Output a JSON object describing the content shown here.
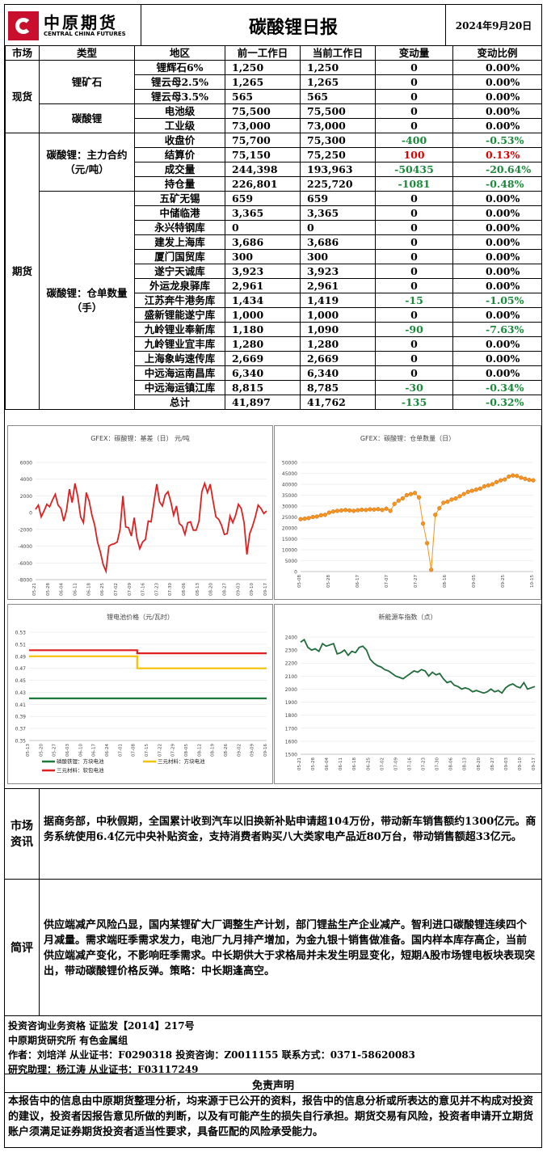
{
  "header": {
    "logo_cn": "中原期货",
    "logo_en": "CENTRAL CHINA FUTURES",
    "title": "碳酸锂日报",
    "date": "2024年9月20日"
  },
  "table": {
    "headers": [
      "市场",
      "类型",
      "地区",
      "前一工作日",
      "当前工作日",
      "变动量",
      "变动比例"
    ],
    "spot_label": "现货",
    "futures_label": "期货",
    "groups": {
      "ore": "锂矿石",
      "carbonate": "碳酸锂",
      "main": "碳酸锂：主力合约（元/吨）",
      "warehouse": "碳酸锂：仓单数量（手）"
    },
    "rows": [
      {
        "region": "锂辉石6%",
        "prev": "1,250",
        "cur": "1,250",
        "chg": "0",
        "pct": "0.00%"
      },
      {
        "region": "锂云母2.5%",
        "prev": "1,265",
        "cur": "1,265",
        "chg": "0",
        "pct": "0.00%"
      },
      {
        "region": "锂云母3.5%",
        "prev": "565",
        "cur": "565",
        "chg": "0",
        "pct": "0.00%"
      },
      {
        "region": "电池级",
        "prev": "75,500",
        "cur": "75,500",
        "chg": "0",
        "pct": "0.00%"
      },
      {
        "region": "工业级",
        "prev": "73,000",
        "cur": "73,000",
        "chg": "0",
        "pct": "0.00%"
      },
      {
        "region": "收盘价",
        "prev": "75,700",
        "cur": "75,300",
        "chg": "-400",
        "pct": "-0.53%"
      },
      {
        "region": "结算价",
        "prev": "75,150",
        "cur": "75,250",
        "chg": "100",
        "pct": "0.13%"
      },
      {
        "region": "成交量",
        "prev": "244,398",
        "cur": "193,963",
        "chg": "-50435",
        "pct": "-20.64%"
      },
      {
        "region": "持仓量",
        "prev": "226,801",
        "cur": "225,720",
        "chg": "-1081",
        "pct": "-0.48%"
      },
      {
        "region": "五矿无锡",
        "prev": "659",
        "cur": "659",
        "chg": "0",
        "pct": "0.00%"
      },
      {
        "region": "中储临港",
        "prev": "3,365",
        "cur": "3,365",
        "chg": "0",
        "pct": "0.00%"
      },
      {
        "region": "永兴特钢库",
        "prev": "0",
        "cur": "0",
        "chg": "0",
        "pct": "0.00%"
      },
      {
        "region": "建发上海库",
        "prev": "3,686",
        "cur": "3,686",
        "chg": "0",
        "pct": "0.00%"
      },
      {
        "region": "厦门国贸库",
        "prev": "300",
        "cur": "300",
        "chg": "0",
        "pct": "0.00%"
      },
      {
        "region": "遂宁天诚库",
        "prev": "3,923",
        "cur": "3,923",
        "chg": "0",
        "pct": "0.00%"
      },
      {
        "region": "外运龙泉驿库",
        "prev": "2,961",
        "cur": "2,961",
        "chg": "0",
        "pct": "0.00%"
      },
      {
        "region": "江苏奔牛港务库",
        "prev": "1,434",
        "cur": "1,419",
        "chg": "-15",
        "pct": "-1.05%"
      },
      {
        "region": "盛新锂能遂宁库",
        "prev": "1,000",
        "cur": "1,000",
        "chg": "0",
        "pct": "0.00%"
      },
      {
        "region": "九岭锂业奉新库",
        "prev": "1,180",
        "cur": "1,090",
        "chg": "-90",
        "pct": "-7.63%"
      },
      {
        "region": "九岭锂业宜丰库",
        "prev": "1,280",
        "cur": "1,280",
        "chg": "0",
        "pct": "0.00%"
      },
      {
        "region": "上海象屿速传库",
        "prev": "2,669",
        "cur": "2,669",
        "chg": "0",
        "pct": "0.00%"
      },
      {
        "region": "中远海运南昌库",
        "prev": "6,340",
        "cur": "6,340",
        "chg": "0",
        "pct": "0.00%"
      },
      {
        "region": "中远海运镇江库",
        "prev": "8,815",
        "cur": "8,785",
        "chg": "-30",
        "pct": "-0.34%"
      },
      {
        "region": "总计",
        "prev": "41,897",
        "cur": "41,762",
        "chg": "-135",
        "pct": "-0.32%"
      }
    ]
  },
  "colors": {
    "negative": "#1a8a3a",
    "positive": "#e00000"
  },
  "chart_data": [
    {
      "type": "line",
      "title": "GFEX：碳酸锂：基差（日） 元/吨",
      "ylim": [
        -8000,
        6000
      ],
      "yticks": [
        "6000",
        "4000",
        "2000",
        "0",
        "-2000",
        "-4000",
        "-6000",
        "-8000"
      ],
      "xticks": [
        "05-21",
        "05-28",
        "06-04",
        "06-11",
        "06-18",
        "06-25",
        "07-02",
        "07-09",
        "07-16",
        "07-23",
        "07-30",
        "08-06",
        "08-13",
        "08-20",
        "08-27",
        "09-03",
        "09-10",
        "09-17"
      ],
      "series": [
        {
          "color": "#e02020",
          "values": [
            400,
            900,
            -500,
            200,
            1000,
            700,
            1500,
            2200,
            900,
            500,
            -1000,
            300,
            2800,
            1200,
            3500,
            1900,
            -500,
            -1200,
            2400,
            1400,
            -300,
            -1500,
            -3500,
            -4700,
            -6200,
            -7000,
            -4000,
            -3800,
            -3700,
            -3500,
            -2000,
            2000,
            -1700,
            -1800,
            -2800,
            -600,
            -3100,
            -4300,
            -3500,
            -3200,
            -1000,
            -1100,
            1200,
            3400,
            1300,
            800,
            2100,
            2500,
            1300,
            -300,
            800,
            -1300,
            -1600,
            -2600,
            -1200,
            -1100,
            -2100,
            -2100,
            -1000,
            2500,
            3500,
            2400,
            3400,
            1400,
            -500,
            -800,
            -1500,
            -2600,
            -2500,
            -400,
            -1200,
            -300,
            1000,
            500,
            -1200,
            -5000,
            -2500,
            -1600,
            -500,
            900,
            500,
            -100,
            200
          ]
        }
      ]
    },
    {
      "type": "scatter",
      "title": "GFEX：碳酸锂：仓单数量（日）",
      "ylim": [
        0,
        50000
      ],
      "yticks": [
        "50000",
        "45000",
        "40000",
        "35000",
        "30000",
        "25000",
        "20000",
        "15000",
        "10000",
        "5000",
        "0"
      ],
      "xticks": [
        "05-08",
        "05-28",
        "06-17",
        "07-07",
        "07-27",
        "08-16",
        "09-05",
        "09-25",
        "10-15"
      ],
      "series": [
        {
          "color": "#f7941d",
          "values": [
            24000,
            24200,
            24500,
            25000,
            25200,
            25800,
            26000,
            27000,
            27500,
            27800,
            28000,
            28200,
            28000,
            27800,
            28100,
            28300,
            28200,
            28500,
            28400,
            28600,
            28200,
            28800,
            27800,
            31000,
            32500,
            33500,
            35000,
            35500,
            36000,
            34000,
            22000,
            13000,
            800,
            26000,
            29000,
            31500,
            32000,
            33000,
            33500,
            34500,
            35500,
            36500,
            37000,
            37500,
            38000,
            39000,
            39500,
            40000,
            41000,
            41800,
            42200,
            43500,
            44000,
            43800,
            43000,
            42500,
            42000,
            41800
          ]
        }
      ]
    },
    {
      "type": "line",
      "title": "锂电池价格（元/瓦时）",
      "ylim": [
        0.35,
        0.53
      ],
      "yticks": [
        "0.53",
        "0.51",
        "0.49",
        "0.47",
        "0.45",
        "0.43",
        "0.41",
        "0.39",
        "0.37",
        "0.35"
      ],
      "xticks": [
        "05-13",
        "05-20",
        "05-27",
        "06-03",
        "06-10",
        "06-17",
        "06-24",
        "07-01",
        "07-08",
        "07-15",
        "07-22",
        "07-29",
        "08-05",
        "08-12",
        "08-19",
        "08-26",
        "09-02",
        "09-09",
        "09-16"
      ],
      "series": [
        {
          "name": "磷酸铁锂：方块电池",
          "color": "#1f7a3a",
          "points": [
            [
              0,
              0.42
            ],
            [
              1,
              0.42
            ]
          ]
        },
        {
          "name": "三元材料：方块电池",
          "color": "#f5c000",
          "points": [
            [
              0,
              0.49
            ],
            [
              0.455,
              0.49
            ],
            [
              0.455,
              0.47
            ],
            [
              1,
              0.47
            ]
          ]
        },
        {
          "name": "三元材料：软包电池",
          "color": "#e02020",
          "points": [
            [
              0,
              0.5
            ],
            [
              0.455,
              0.5
            ],
            [
              0.455,
              0.495
            ],
            [
              1,
              0.495
            ]
          ]
        }
      ]
    },
    {
      "type": "line",
      "title": "新能源车指数（点）",
      "ylim": [
        1500,
        2400
      ],
      "yticks": [
        "2400",
        "2300",
        "2200",
        "2100",
        "2000",
        "1900",
        "1800",
        "1700",
        "1600",
        "1500"
      ],
      "xticks": [
        "05-21",
        "05-28",
        "06-04",
        "06-11",
        "06-18",
        "06-25",
        "07-02",
        "07-09",
        "07-16",
        "07-23",
        "07-30",
        "08-06",
        "08-13",
        "08-20",
        "08-27",
        "09-03",
        "09-10",
        "09-17"
      ],
      "series": [
        {
          "color": "#1f6b3a",
          "values": [
            2360,
            2380,
            2320,
            2300,
            2310,
            2290,
            2350,
            2330,
            2340,
            2350,
            2270,
            2280,
            2300,
            2260,
            2290,
            2280,
            2320,
            2330,
            2300,
            2230,
            2200,
            2180,
            2170,
            2150,
            2140,
            2120,
            2100,
            2090,
            2080,
            2100,
            2120,
            2140,
            2130,
            2150,
            2140,
            2100,
            2130,
            2110,
            2120,
            2080,
            2050,
            2060,
            2030,
            2020,
            2000,
            2010,
            2000,
            1980,
            1990,
            1980,
            1970,
            1980,
            2000,
            1980,
            1990,
            1970,
            2010,
            2030,
            2040,
            2020,
            2010,
            2050,
            2000,
            2010,
            2020
          ]
        }
      ]
    }
  ],
  "sections": {
    "market_label": "市场资讯",
    "market_text": "据商务部，中秋假期，全国累计收到汽车以旧换新补贴申请超104万份，带动新车销售额约1300亿元。商务系统使用6.4亿元中央补贴资金，支持消费者购买八大类家电产品近80万台，带动销售额超33亿元。",
    "review_label": "简评",
    "review_text": "供应端减产风险凸显，国内某锂矿大厂调整生产计划，部门锂盐生产企业减产。智利进口碳酸锂连续四个月减量。需求端旺季需求发力，电池厂九月排产增加，为金九银十销售做准备。国内样本库存高企，当前供应端减产变化，不影响旺季需求。中长期供大于求格局并未发生明显变化，短期A股市场锂电板块表现突出，带动碳酸锂价格反弹。策略：中长期逢高空。"
  },
  "info": {
    "line1": "投资咨询业务资格  证监发【2014】217号",
    "line2": "中原期货研究所  有色金属组",
    "line3": "作者：刘培洋    从业证书：F0290318    投资咨询：Z0011155    联系方式：0371-58620083",
    "line4": "研究助理：杨江涛    从业证书：F03117249"
  },
  "disclaimer": {
    "title": "免责声明",
    "text": "本报告中的信息由中原期货整理分析，均来源于已公开的资料，报告中的信息分析或所表达的意见并不构成对投资的建议，投资者因报告意见所做的判断，以及有可能产生的损失自行承担。期货交易有风险，投资者申请开立期货账户须满足证券期货投资者适当性要求，具备匹配的风险承受能力。"
  }
}
